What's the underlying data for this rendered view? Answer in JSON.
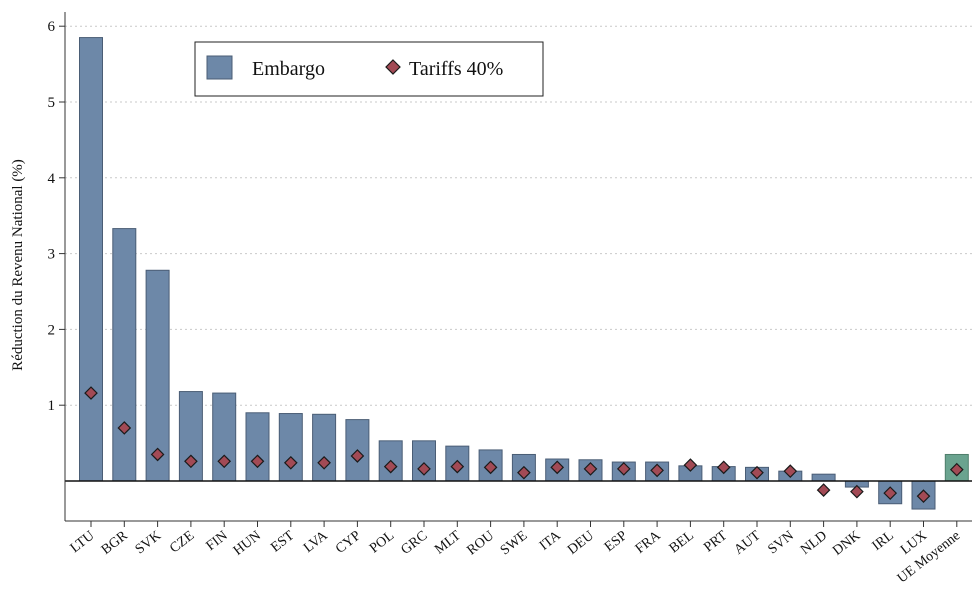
{
  "chart_data": {
    "type": "bar",
    "ylabel": "Réduction du Revenu National (%)",
    "xlabel": "",
    "ylim": [
      -0.45,
      6.2
    ],
    "yticks": [
      1,
      2,
      3,
      4,
      5,
      6
    ],
    "grid": true,
    "legend_position": "top-left",
    "categories": [
      "LTU",
      "BGR",
      "SVK",
      "CZE",
      "FIN",
      "HUN",
      "EST",
      "LVA",
      "CYP",
      "POL",
      "GRC",
      "MLT",
      "ROU",
      "SWE",
      "ITA",
      "DEU",
      "ESP",
      "FRA",
      "BEL",
      "PRT",
      "AUT",
      "SVN",
      "NLD",
      "DNK",
      "IRL",
      "LUX",
      "UE Moyenne"
    ],
    "series": [
      {
        "name": "Embargo",
        "kind": "bar",
        "color": "#6d88a8",
        "highlight_color": "#6aa38f",
        "highlight_category": "UE Moyenne",
        "values": [
          5.85,
          3.33,
          2.78,
          1.18,
          1.16,
          0.9,
          0.89,
          0.88,
          0.81,
          0.53,
          0.53,
          0.46,
          0.41,
          0.35,
          0.29,
          0.28,
          0.25,
          0.25,
          0.2,
          0.19,
          0.18,
          0.13,
          0.09,
          -0.08,
          -0.3,
          -0.37,
          0.35
        ]
      },
      {
        "name": "Tariffs 40%",
        "kind": "marker",
        "color": "#a24a55",
        "values": [
          1.16,
          0.7,
          0.35,
          0.26,
          0.26,
          0.26,
          0.24,
          0.24,
          0.33,
          0.19,
          0.16,
          0.19,
          0.18,
          0.11,
          0.18,
          0.16,
          0.16,
          0.14,
          0.21,
          0.18,
          0.11,
          0.13,
          -0.12,
          -0.14,
          -0.16,
          -0.2,
          0.15
        ]
      }
    ]
  }
}
